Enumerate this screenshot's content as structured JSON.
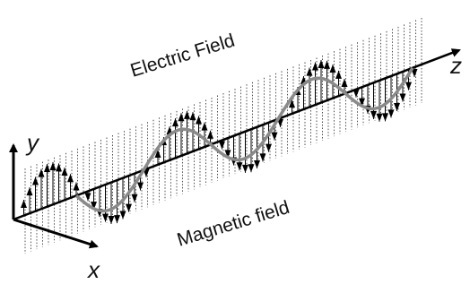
{
  "labels": {
    "electric": "Electric Field",
    "magnetic": "Magnetic field",
    "x": "x",
    "y": "y",
    "z": "z"
  }
}
